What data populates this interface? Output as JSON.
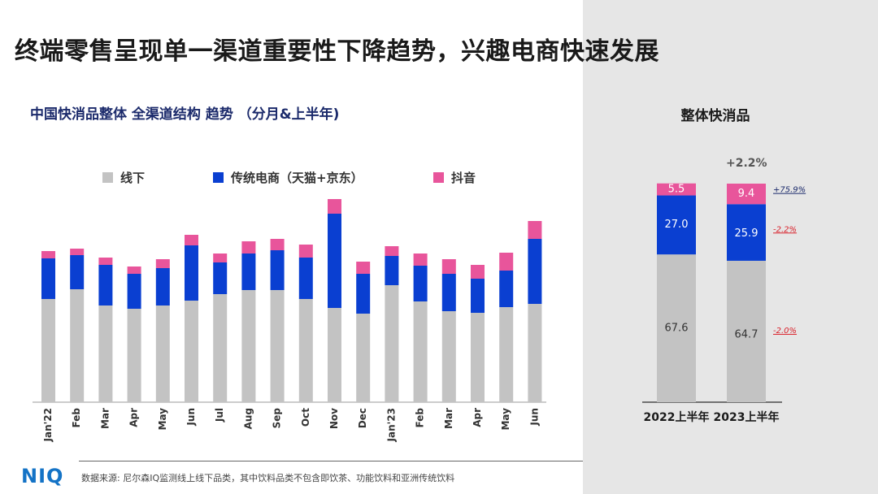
{
  "title": "终端零售呈现单一渠道重要性下降趋势，兴趣电商快速发展",
  "chart_data": [
    {
      "type": "bar",
      "stacked": true,
      "title": "中国快消品整体 全渠道结构 趋势 （分月&上半年)",
      "categories": [
        "Jan'22",
        "Feb",
        "Mar",
        "Apr",
        "May",
        "Jun",
        "Jul",
        "Aug",
        "Sep",
        "Oct",
        "Nov",
        "Dec",
        "Jan'23",
        "Feb",
        "Mar",
        "Apr",
        "May",
        "Jun"
      ],
      "series": [
        {
          "name": "线下",
          "color": "#c3c3c3",
          "values": [
            127,
            139,
            119,
            115,
            119,
            125,
            133,
            138,
            138,
            127,
            116,
            109,
            144,
            124,
            112,
            110,
            117,
            121
          ]
        },
        {
          "name": "传统电商（天猫+京东）",
          "color": "#0a3fd1",
          "values": [
            50,
            42,
            50,
            43,
            46,
            68,
            39,
            45,
            49,
            51,
            116,
            49,
            36,
            44,
            46,
            42,
            45,
            80
          ]
        },
        {
          "name": "抖音",
          "color": "#e8559b",
          "values": [
            9,
            8,
            9,
            9,
            11,
            13,
            11,
            15,
            14,
            16,
            18,
            15,
            12,
            15,
            18,
            17,
            22,
            22
          ]
        }
      ],
      "legend_position": "top"
    },
    {
      "type": "bar",
      "stacked": true,
      "title": "整体快消品",
      "categories": [
        "2022上半年",
        "2023上半年"
      ],
      "series": [
        {
          "name": "线下",
          "values": [
            67.6,
            64.7
          ],
          "changes": [
            "",
            "-2.0%"
          ]
        },
        {
          "name": "传统电商（天猫+京东）",
          "values": [
            27.0,
            25.9
          ],
          "changes": [
            "",
            "-2.2%"
          ]
        },
        {
          "name": "抖音",
          "values": [
            5.5,
            9.4
          ],
          "changes": [
            "",
            "+75.9%"
          ]
        }
      ],
      "total_change": "+2.2%",
      "change_colors": {
        "positive": "#1b2a6b",
        "negative": "#d9232d"
      }
    }
  ],
  "footer": {
    "logo": "NIQ",
    "source": "数据来源: 尼尔森IQ监测线上线下品类，其中饮料品类不包含即饮茶、功能饮料和亚洲传统饮料"
  }
}
